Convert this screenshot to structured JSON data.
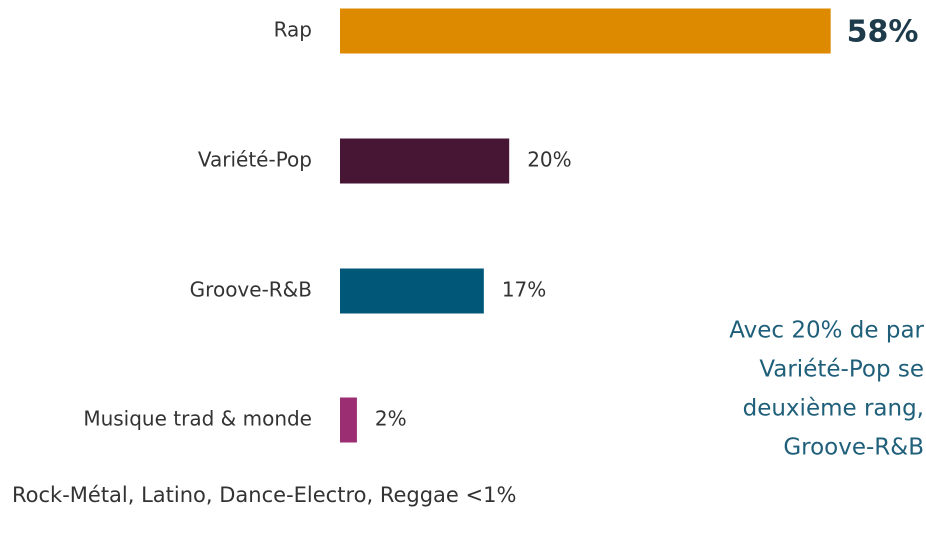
{
  "chart_data": {
    "type": "bar",
    "categories": [
      "Rap",
      "Variété-Pop",
      "Groove-R&B",
      "Musique trad & monde"
    ],
    "values": [
      58,
      20,
      17,
      2
    ],
    "value_labels": [
      "58%",
      "20%",
      "17%",
      "2%"
    ],
    "colors": [
      "#de8a00",
      "#461634",
      "#005778",
      "#9b2d72"
    ],
    "annotation": [
      "Avec 20% de par",
      "Variété-Pop se",
      "deuxième rang,",
      "Groove-R&B"
    ],
    "footnote": "Rock-Métal, Latino, Dance-Electro, Reggae <1%"
  }
}
